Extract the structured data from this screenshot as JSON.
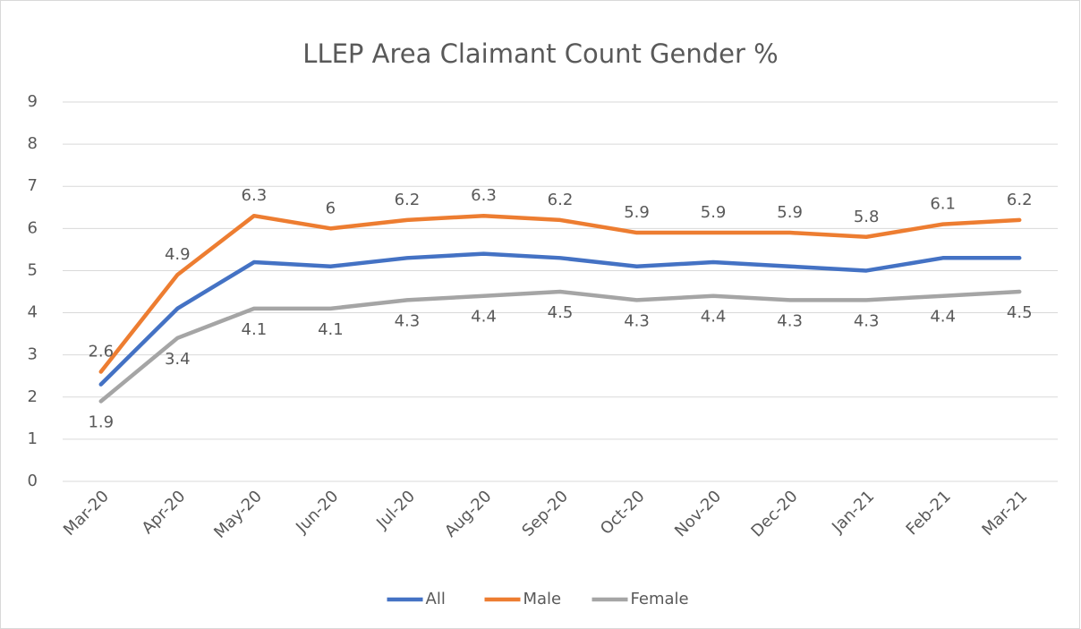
{
  "chart_data": {
    "type": "line",
    "title": "LLEP Area Claimant Count Gender %",
    "categories": [
      "Mar-20",
      "Apr-20",
      "May-20",
      "Jun-20",
      "Jul-20",
      "Aug-20",
      "Sep-20",
      "Oct-20",
      "Nov-20",
      "Dec-20",
      "Jan-21",
      "Feb-21",
      "Mar-21"
    ],
    "series": [
      {
        "name": "All",
        "color": "#4472c4",
        "values": [
          2.3,
          4.1,
          5.2,
          5.1,
          5.3,
          5.4,
          5.3,
          5.1,
          5.2,
          5.1,
          5.0,
          5.3,
          5.3
        ]
      },
      {
        "name": "Male",
        "color": "#ed7d31",
        "labels": "above",
        "values": [
          2.6,
          4.9,
          6.3,
          6,
          6.2,
          6.3,
          6.2,
          5.9,
          5.9,
          5.9,
          5.8,
          6.1,
          6.2
        ]
      },
      {
        "name": "Female",
        "color": "#a5a5a5",
        "labels": "below",
        "values": [
          1.9,
          3.4,
          4.1,
          4.1,
          4.3,
          4.4,
          4.5,
          4.3,
          4.4,
          4.3,
          4.3,
          4.4,
          4.5
        ]
      }
    ],
    "ylim": [
      0,
      9
    ],
    "yticks": [
      0,
      1,
      2,
      3,
      4,
      5,
      6,
      7,
      8,
      9
    ],
    "grid": true,
    "legend": "bottom"
  }
}
